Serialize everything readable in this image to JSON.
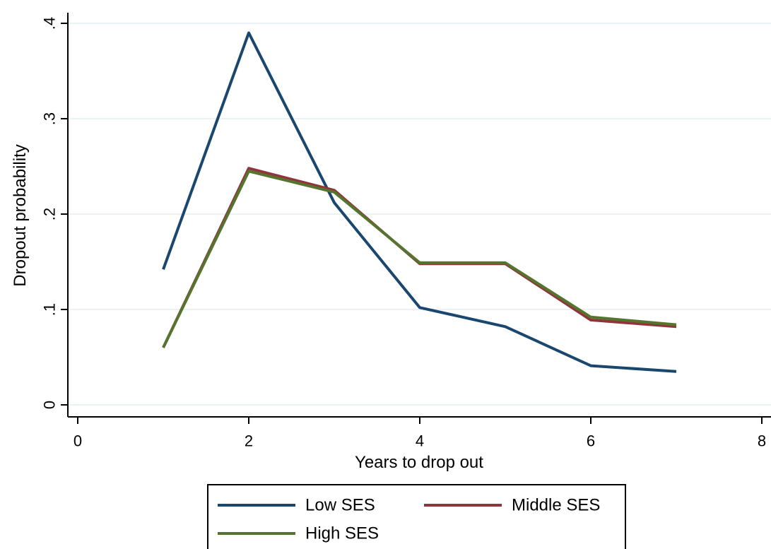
{
  "chart_data": {
    "type": "line",
    "xlabel": "Years to drop out",
    "ylabel": "Dropout probability",
    "xlim": [
      0,
      8
    ],
    "ylim": [
      0,
      0.4
    ],
    "xticks": [
      0,
      2,
      4,
      6,
      8
    ],
    "xtick_labels": [
      "0",
      "2",
      "4",
      "6",
      "8"
    ],
    "yticks": [
      0,
      0.1,
      0.2,
      0.3,
      0.4
    ],
    "ytick_labels": [
      "0",
      ".1",
      ".2",
      ".3",
      ".4"
    ],
    "grid": "horizontal",
    "legend_position": "bottom",
    "series": [
      {
        "name": "Low SES",
        "color": "#1a476f",
        "x": [
          1,
          2,
          3,
          4,
          5,
          6,
          7
        ],
        "y": [
          0.142,
          0.39,
          0.212,
          0.102,
          0.082,
          0.041,
          0.035
        ]
      },
      {
        "name": "Middle SES",
        "color": "#90353b",
        "x": [
          1,
          2,
          3,
          4,
          5,
          6,
          7
        ],
        "y": [
          0.06,
          0.248,
          0.225,
          0.148,
          0.148,
          0.089,
          0.082
        ]
      },
      {
        "name": "High SES",
        "color": "#55752f",
        "x": [
          1,
          2,
          3,
          4,
          5,
          6,
          7
        ],
        "y": [
          0.06,
          0.245,
          0.223,
          0.149,
          0.149,
          0.092,
          0.084
        ]
      }
    ]
  }
}
